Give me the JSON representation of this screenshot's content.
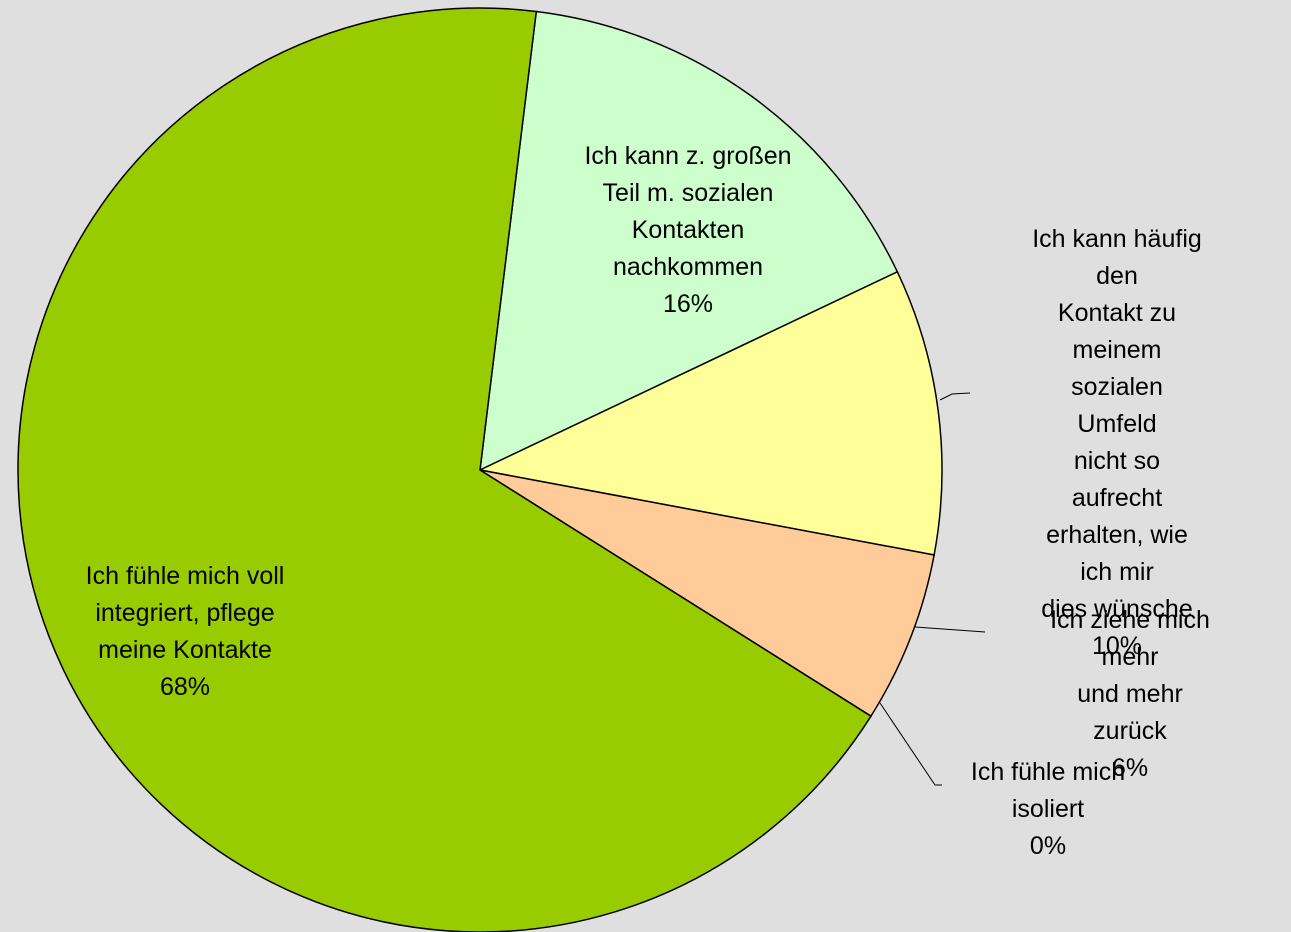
{
  "chart_data": {
    "type": "pie",
    "categories": [
      "Ich kann z. großen\nTeil m. sozialen\nKontakten\nnachkommen",
      "Ich kann häufig den\nKontakt zu meinem\nsozialen Umfeld\nnicht so aufrecht\nerhalten, wie ich mir\ndies wünsche",
      "Ich ziehe mich mehr\nund mehr zurück",
      "Ich fühle mich\nisoliert",
      "Ich fühle mich voll\nintegriert, pflege\nmeine Kontakte"
    ],
    "values": [
      16,
      10,
      6,
      0,
      68
    ],
    "value_labels": [
      "16%",
      "10%",
      "6%",
      "0%",
      "68%"
    ],
    "colors": [
      "#ccffcc",
      "#ffff99",
      "#ffcc99",
      "#ff99cc",
      "#99cc00"
    ]
  }
}
